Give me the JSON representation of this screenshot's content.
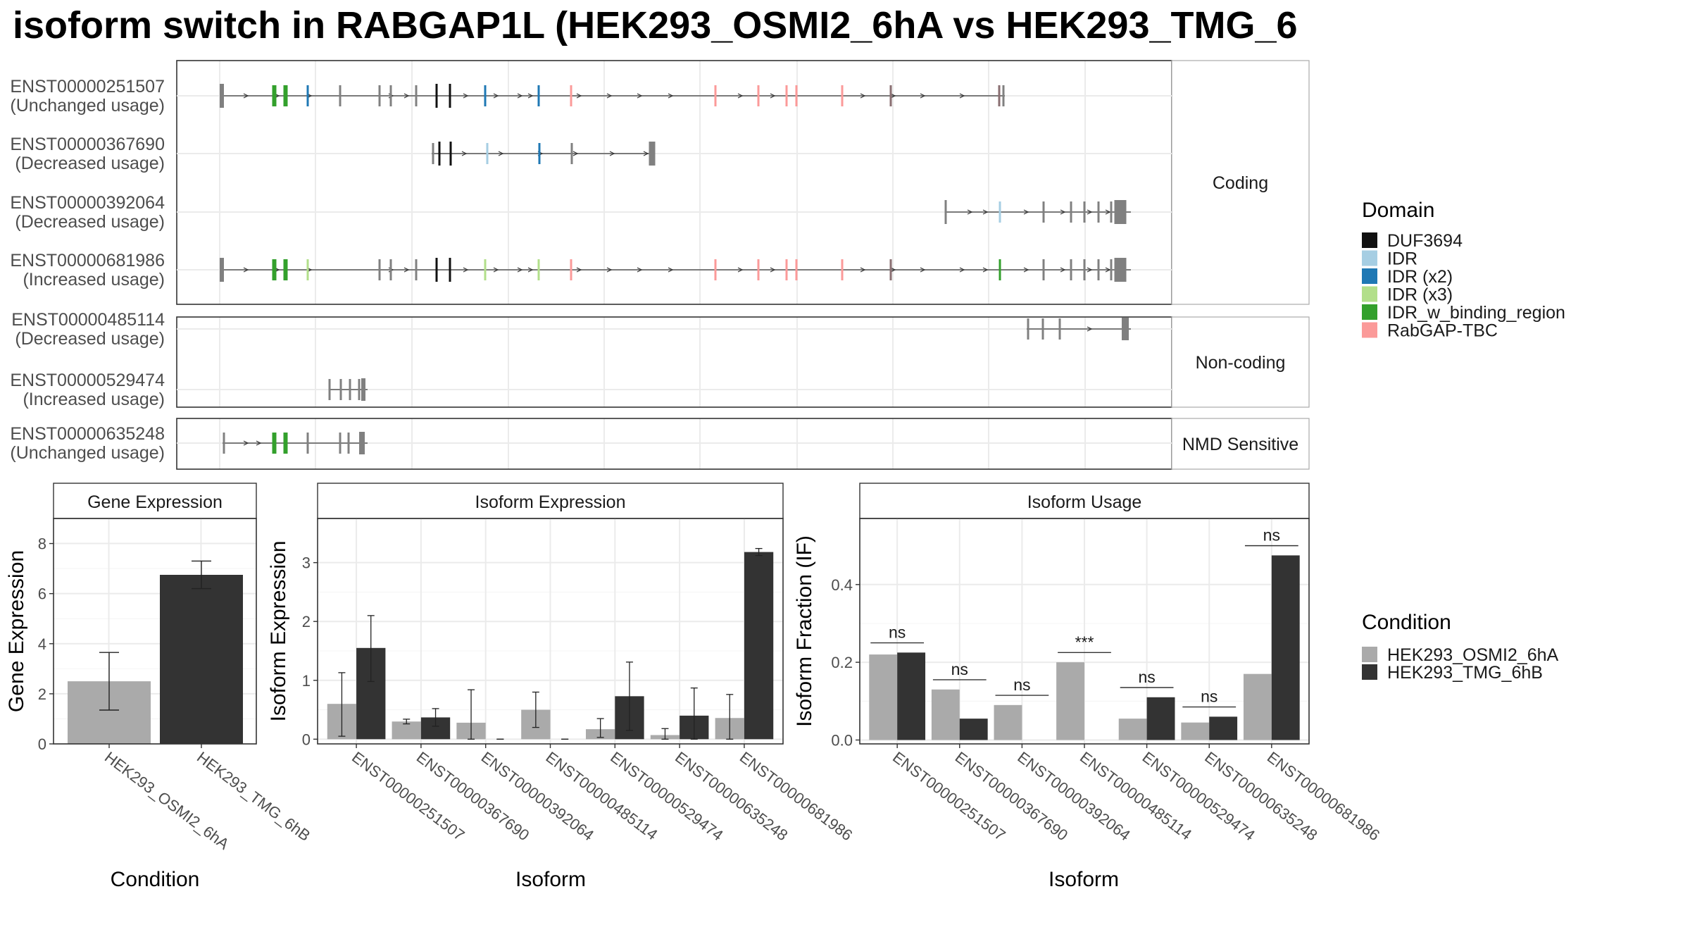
{
  "title": "isoform switch in RABGAP1L (HEK293_OSMI2_6hA vs HEK293_TMG_6",
  "colors": {
    "cond_a": "#aaaaaa",
    "cond_b": "#333333",
    "domains": {
      "DUF3694": "#111111",
      "IDR": "#a6cee3",
      "IDR (x2)": "#1f78b4",
      "IDR (x3)": "#b2df8a",
      "IDR_w_binding_region": "#33a02c",
      "RabGAP-TBC": "#fb9a99"
    }
  },
  "structure": {
    "groups": [
      {
        "name": "Coding",
        "rows": [
          {
            "id": "ENST00000251507",
            "usage": "(Unchanged usage)"
          },
          {
            "id": "ENST00000367690",
            "usage": "(Decreased usage)"
          },
          {
            "id": "ENST00000392064",
            "usage": "(Decreased usage)"
          },
          {
            "id": "ENST00000681986",
            "usage": "(Increased usage)"
          }
        ]
      },
      {
        "name": "Non-coding",
        "rows": [
          {
            "id": "ENST00000485114",
            "usage": "(Decreased usage)"
          },
          {
            "id": "ENST00000529474",
            "usage": "(Increased usage)"
          }
        ]
      },
      {
        "name": "NMD Sensitive",
        "rows": [
          {
            "id": "ENST00000635248",
            "usage": "(Unchanged usage)"
          }
        ]
      }
    ]
  },
  "legend_domain": {
    "title": "Domain",
    "items": [
      "DUF3694",
      "IDR",
      "IDR (x2)",
      "IDR (x3)",
      "IDR_w_binding_region",
      "RabGAP-TBC"
    ]
  },
  "legend_condition": {
    "title": "Condition",
    "items": [
      "HEK293_OSMI2_6hA",
      "HEK293_TMG_6hB"
    ]
  },
  "chart_data": [
    {
      "type": "bar",
      "title": "Gene Expression",
      "xlabel": "Condition",
      "ylabel": "Gene Expression",
      "categories": [
        "HEK293_OSMI2_6hA",
        "HEK293_TMG_6hB"
      ],
      "values": [
        2.5,
        6.75
      ],
      "error_low": [
        1.35,
        6.2
      ],
      "error_high": [
        3.65,
        7.3
      ],
      "ylim": [
        0,
        9
      ],
      "yticks": [
        0,
        2,
        4,
        6,
        8
      ]
    },
    {
      "type": "bar",
      "title": "Isoform Expression",
      "xlabel": "Isoform",
      "ylabel": "Isoform Expression",
      "categories": [
        "ENST00000251507",
        "ENST00000367690",
        "ENST00000392064",
        "ENST00000485114",
        "ENST00000529474",
        "ENST00000635248",
        "ENST00000681986"
      ],
      "series": [
        {
          "name": "HEK293_OSMI2_6hA",
          "values": [
            0.6,
            0.3,
            0.28,
            0.5,
            0.17,
            0.07,
            0.36
          ],
          "error_low": [
            0.05,
            0.26,
            0.0,
            0.2,
            0.03,
            0.0,
            0.0
          ],
          "error_high": [
            1.13,
            0.34,
            0.84,
            0.8,
            0.35,
            0.18,
            0.76
          ]
        },
        {
          "name": "HEK293_TMG_6hB",
          "values": [
            1.55,
            0.37,
            0.0,
            0.0,
            0.73,
            0.4,
            3.18
          ],
          "error_low": [
            0.98,
            0.22,
            0.0,
            0.0,
            0.15,
            0.0,
            3.12
          ],
          "error_high": [
            2.1,
            0.52,
            0.0,
            0.0,
            1.31,
            0.87,
            3.24
          ]
        }
      ],
      "ylim": [
        -0.08,
        3.75
      ],
      "yticks": [
        0,
        1,
        2,
        3
      ]
    },
    {
      "type": "bar",
      "title": "Isoform Usage",
      "xlabel": "Isoform",
      "ylabel": "Isoform Fraction (IF)",
      "categories": [
        "ENST00000251507",
        "ENST00000367690",
        "ENST00000392064",
        "ENST00000485114",
        "ENST00000529474",
        "ENST00000635248",
        "ENST00000681986"
      ],
      "series": [
        {
          "name": "HEK293_OSMI2_6hA",
          "values": [
            0.22,
            0.13,
            0.09,
            0.2,
            0.055,
            0.045,
            0.17
          ]
        },
        {
          "name": "HEK293_TMG_6hB",
          "values": [
            0.225,
            0.055,
            0.0,
            0.0,
            0.11,
            0.06,
            0.475
          ]
        }
      ],
      "significance": [
        "ns",
        "ns",
        "ns",
        "***",
        "ns",
        "ns",
        "ns"
      ],
      "ylim": [
        -0.01,
        0.57
      ],
      "yticks": [
        0.0,
        0.2,
        0.4
      ],
      "ytick_labels": [
        "0.0",
        "0.2",
        "0.4"
      ]
    }
  ]
}
